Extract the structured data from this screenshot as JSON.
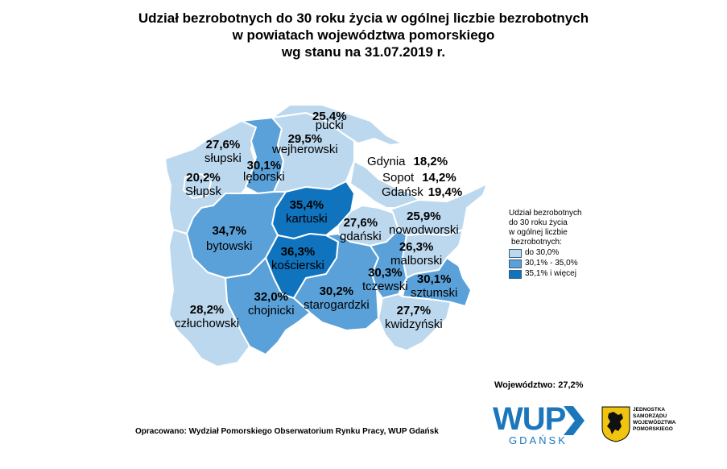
{
  "title": {
    "line1": "Udział bezrobotnych do 30 roku życia w ogólnej liczbie bezrobotnych",
    "line2": "w powiatach województwa pomorskiego",
    "line3": "wg stanu na 31.07.2019 r."
  },
  "colors": {
    "low": "#bcd8ee",
    "mid": "#5aa1d9",
    "high": "#0f73bd",
    "border": "#ffffff"
  },
  "districts": [
    {
      "name": "pucki",
      "value": "25,4%",
      "class": "low"
    },
    {
      "name": "wejherowski",
      "value": "29,5%",
      "class": "low"
    },
    {
      "name": "słupski",
      "value": "27,6%",
      "class": "low"
    },
    {
      "name": "lęborski",
      "value": "30,1%",
      "class": "mid"
    },
    {
      "name": "Słupsk",
      "value": "20,2%",
      "class": "low"
    },
    {
      "name": "kartuski",
      "value": "35,4%",
      "class": "high"
    },
    {
      "name": "gdański",
      "value": "27,6%",
      "class": "low"
    },
    {
      "name": "nowodworski",
      "value": "25,9%",
      "class": "low"
    },
    {
      "name": "bytowski",
      "value": "34,7%",
      "class": "mid"
    },
    {
      "name": "kościerski",
      "value": "36,3%",
      "class": "high"
    },
    {
      "name": "malborski",
      "value": "26,3%",
      "class": "low"
    },
    {
      "name": "tczewski",
      "value": "30,3%",
      "class": "mid"
    },
    {
      "name": "sztumski",
      "value": "30,1%",
      "class": "mid"
    },
    {
      "name": "chojnicki",
      "value": "32,0%",
      "class": "mid"
    },
    {
      "name": "starogardzki",
      "value": "30,2%",
      "class": "mid"
    },
    {
      "name": "człuchowski",
      "value": "28,2%",
      "class": "low"
    },
    {
      "name": "kwidzyński",
      "value": "27,7%",
      "class": "low"
    }
  ],
  "cities": [
    {
      "name": "Gdynia",
      "value": "18,2%"
    },
    {
      "name": "Sopot",
      "value": "14,2%"
    },
    {
      "name": "Gdańsk",
      "value": "19,4%"
    }
  ],
  "legend": {
    "title_lines": [
      "Udział bezrobotnych",
      "do 30 roku życia",
      "w ogólnej liczbie",
      "bezrobotnych:"
    ],
    "items": [
      {
        "label": "do 30,0%",
        "class": "low"
      },
      {
        "label": "30,1% - 35,0%",
        "class": "mid"
      },
      {
        "label": "35,1% i więcej",
        "class": "high"
      }
    ]
  },
  "total": "Województwo: 27,2%",
  "source": "Opracowano: Wydział Pomorskiego Obserwatorium Rynku Pracy, WUP Gdańsk",
  "logo": {
    "big": "WUP",
    "small": "GDAŃSK"
  },
  "unit_logo": [
    "JEDNOSTKA",
    "SAMORZĄDU",
    "WOJEWÓDZTWA",
    "POMORSKIEGO"
  ]
}
